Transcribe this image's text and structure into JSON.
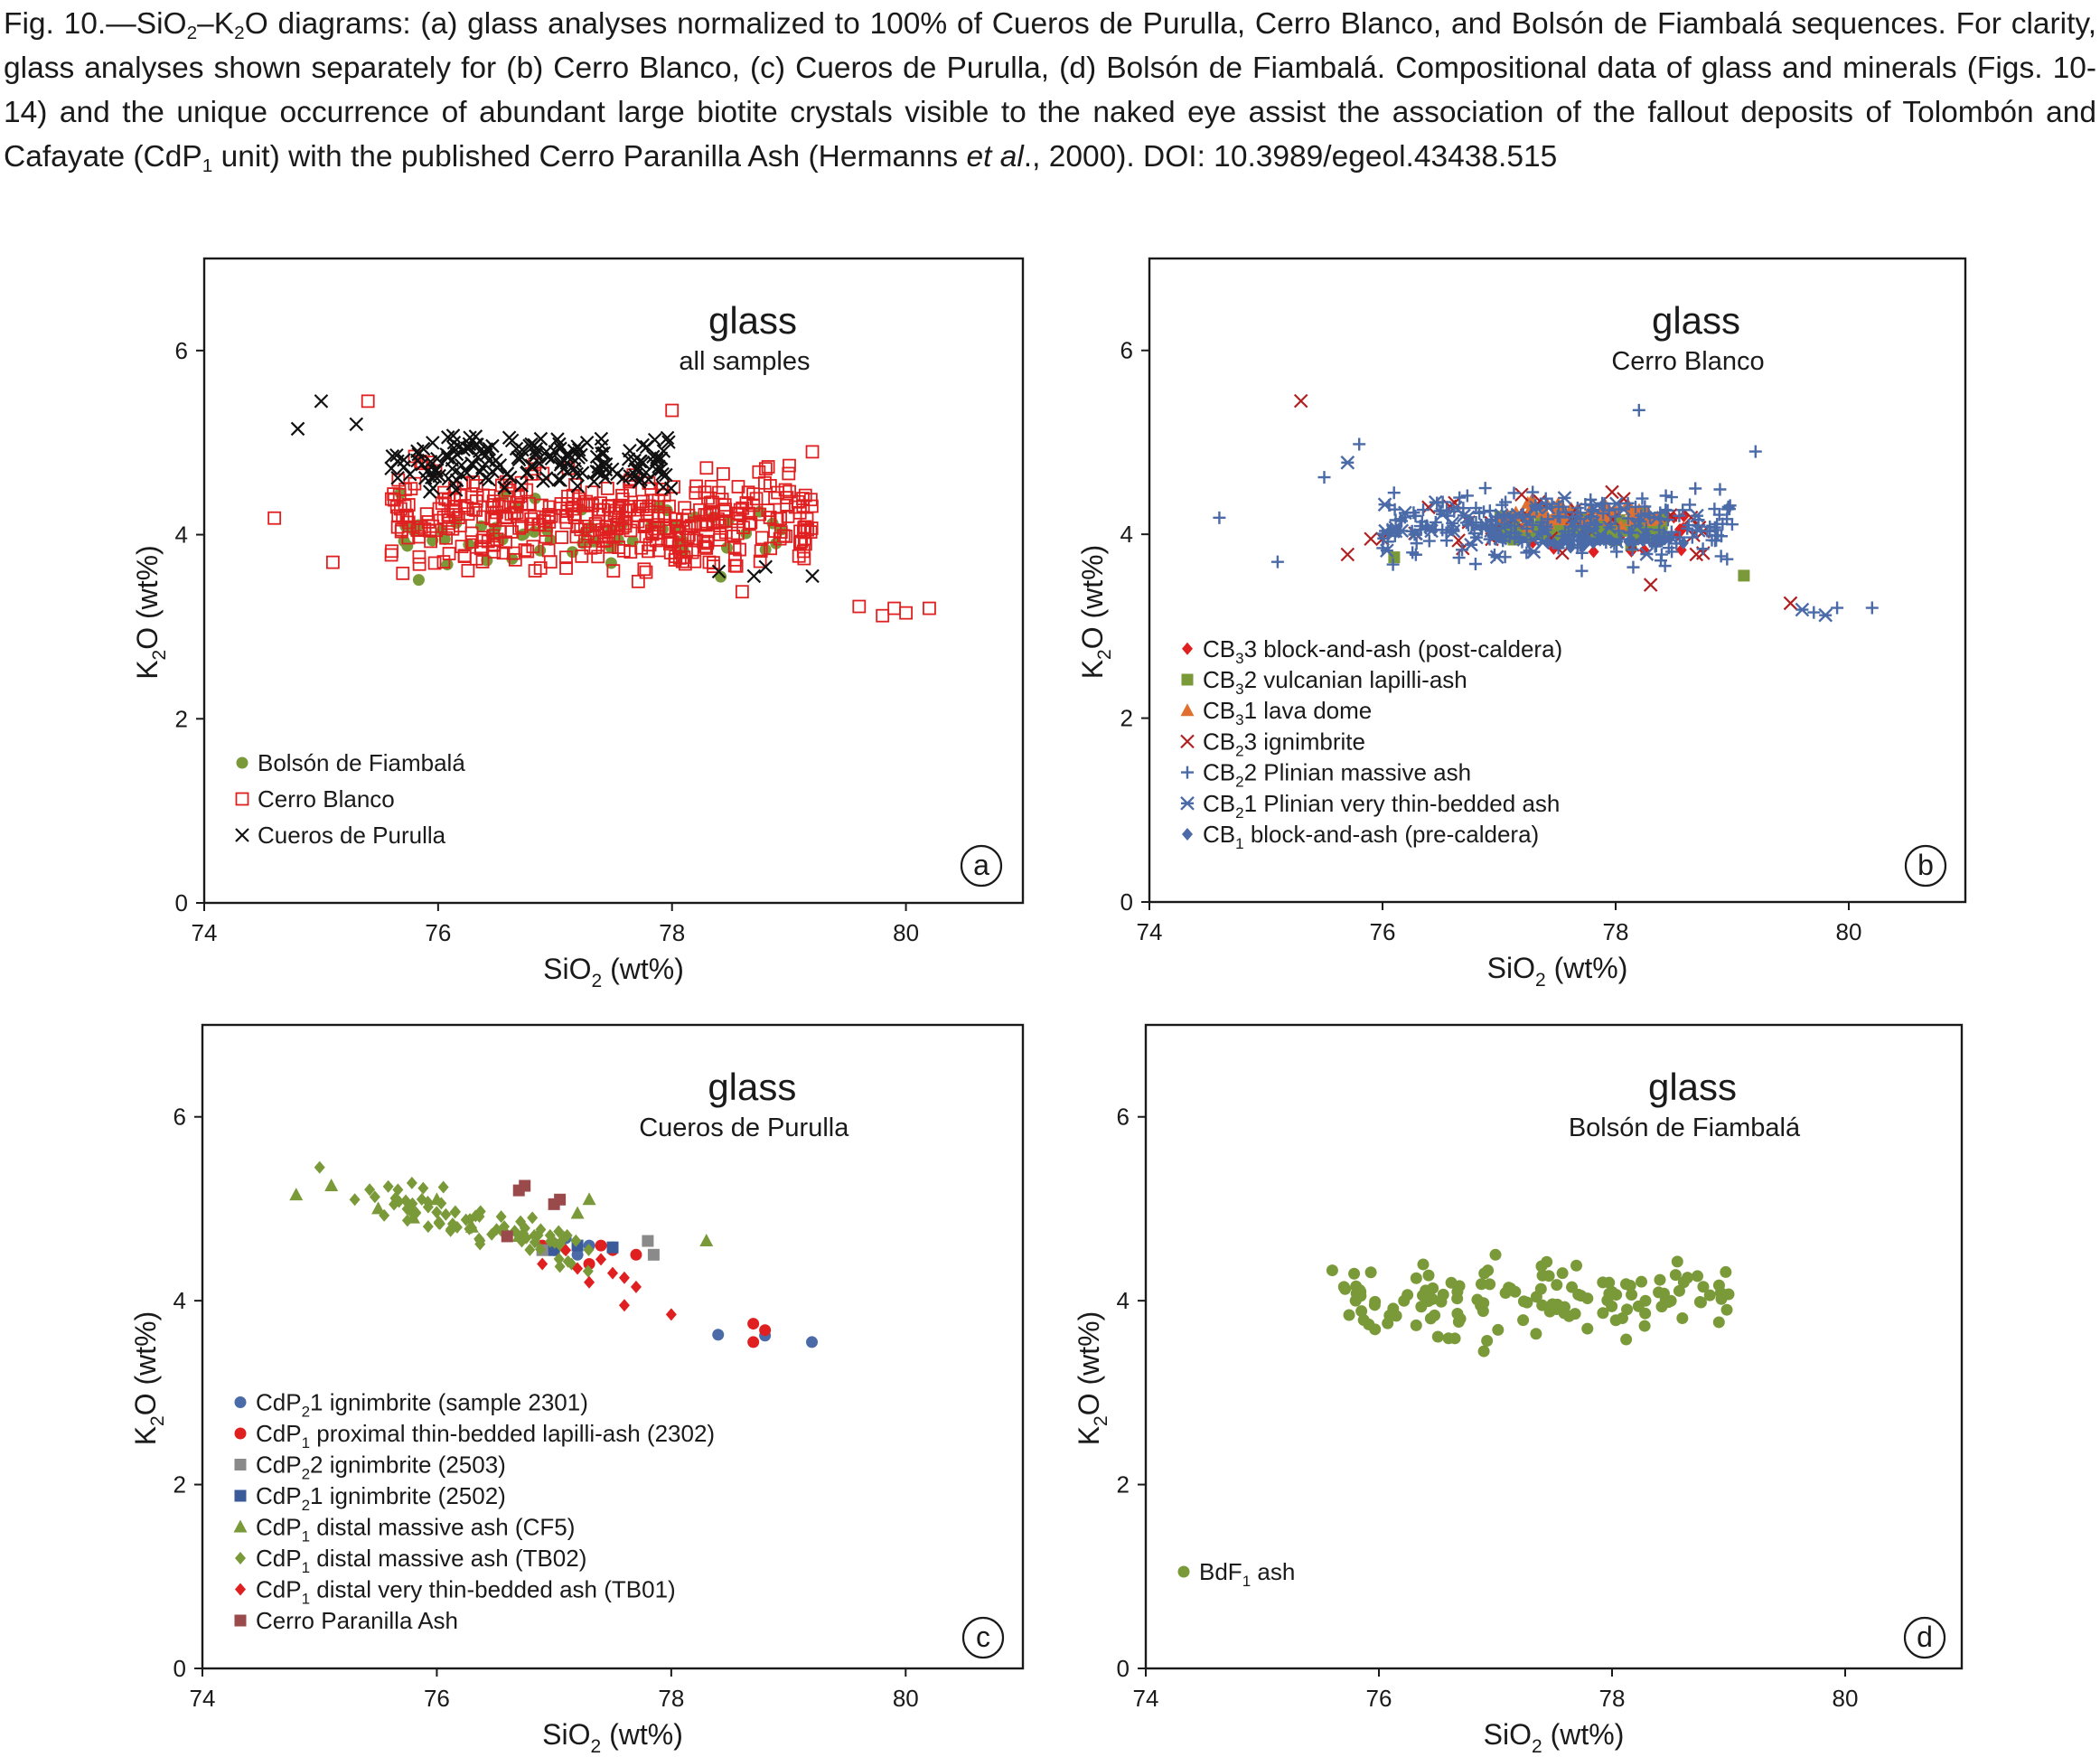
{
  "caption": {
    "fig_label": "Fig. 10.",
    "dash": "—",
    "title_a": "SiO",
    "title_b": "2",
    "title_c": "–K",
    "title_d": "2",
    "title_e": "O diagrams: (a) glass analyses normalized to 100% of Cueros de Purulla, Cerro Blanco, and Bolsón de Fiambalá sequences. For clarity, glass analyses shown separately for (b) Cerro Blanco, (c) Cueros de Purulla, (d) Bolsón de Fiambalá. Compositional data of glass and minerals (Figs. 10-14) and the unique occurrence of abundant large biotite crystals visible to the naked eye assist the association of the fallout deposits of Tolombón and Cafayate (CdP",
    "title_f": "1",
    "title_g": " unit) with the published Cerro Paranilla Ash (Hermanns ",
    "title_h": "et al",
    "title_i": "., 2000). DOI: 10.3989/egeol.43438.515"
  },
  "colors": {
    "green": "#7a9a3a",
    "red": "#e02020",
    "black": "#111111",
    "blue": "#4a6aa8",
    "darkred": "#b02020",
    "orange": "#e07030",
    "gray": "#8a8a8a",
    "navy": "#3a5a9a",
    "brown": "#9a4a4a"
  },
  "chart_data": [
    {
      "panel": "a",
      "type": "scatter",
      "heading": "glass",
      "subheading": "all samples",
      "xlabel_main": "SiO",
      "xlabel_sub": "2",
      "xlabel_tail": " (wt%)",
      "ylabel_main": "K",
      "ylabel_sub": "2",
      "ylabel_tail": "O (wt%)",
      "xlim": [
        74,
        81
      ],
      "ylim": [
        0,
        7
      ],
      "xticks": [
        "74",
        "76",
        "78",
        "80"
      ],
      "yticks": [
        "0",
        "2",
        "4",
        "6"
      ],
      "legend_placement": "bottom-left",
      "series": [
        {
          "name": "Bolsón de Fiambalá",
          "marker": "circle",
          "color": "green",
          "cluster": {
            "x": [
              75.6,
              79.0
            ],
            "y": [
              3.45,
              4.6
            ],
            "n": 60,
            "seed": 11
          }
        },
        {
          "name": "Cerro Blanco",
          "marker": "open-square",
          "color": "red",
          "cluster": {
            "x": [
              75.6,
              79.2
            ],
            "y": [
              3.4,
              4.9
            ],
            "n": 420,
            "seed": 21
          },
          "points": [
            [
              74.6,
              4.18
            ],
            [
              75.1,
              3.7
            ],
            [
              75.4,
              5.45
            ],
            [
              75.6,
              3.78
            ],
            [
              75.8,
              4.85
            ],
            [
              78.0,
              5.35
            ],
            [
              79.2,
              4.9
            ],
            [
              79.6,
              3.22
            ],
            [
              79.8,
              3.12
            ],
            [
              79.9,
              3.2
            ],
            [
              80.0,
              3.15
            ],
            [
              80.2,
              3.2
            ],
            [
              78.6,
              3.38
            ]
          ]
        },
        {
          "name": "Cueros de Purulla",
          "marker": "x",
          "color": "black",
          "cluster": {
            "x": [
              75.6,
              78.0
            ],
            "y": [
              4.4,
              5.2
            ],
            "n": 170,
            "seed": 31
          },
          "points": [
            [
              74.8,
              5.15
            ],
            [
              75.0,
              5.45
            ],
            [
              75.3,
              5.2
            ],
            [
              75.6,
              4.72
            ],
            [
              77.0,
              4.9
            ],
            [
              77.8,
              4.6
            ],
            [
              78.4,
              3.6
            ],
            [
              78.7,
              3.55
            ],
            [
              79.2,
              3.55
            ],
            [
              78.8,
              3.65
            ]
          ]
        }
      ]
    },
    {
      "panel": "b",
      "type": "scatter",
      "heading": "glass",
      "subheading": "Cerro Blanco",
      "xlabel_main": "SiO",
      "xlabel_sub": "2",
      "xlabel_tail": " (wt%)",
      "ylabel_main": "K",
      "ylabel_sub": "2",
      "ylabel_tail": "O (wt%)",
      "xlim": [
        74,
        81
      ],
      "ylim": [
        0,
        7
      ],
      "xticks": [
        "74",
        "76",
        "78",
        "80"
      ],
      "yticks": [
        "0",
        "2",
        "4",
        "6"
      ],
      "legend_placement": "bottom-left",
      "series": [
        {
          "name_a": "CB",
          "name_sub": "3",
          "name_b": "3 block-and-ash (post-caldera)",
          "marker": "diamond",
          "color": "red",
          "cluster": {
            "x": [
              77.0,
              78.6
            ],
            "y": [
              3.7,
              4.4
            ],
            "n": 40,
            "seed": 41
          }
        },
        {
          "name_a": "CB",
          "name_sub": "3",
          "name_b": "2 vulcanian lapilli-ash",
          "marker": "square",
          "color": "green",
          "cluster": {
            "x": [
              77.0,
              78.4
            ],
            "y": [
              3.85,
              4.3
            ],
            "n": 90,
            "seed": 51
          },
          "points": [
            [
              79.1,
              3.55
            ],
            [
              76.1,
              3.75
            ]
          ]
        },
        {
          "name_a": "CB",
          "name_sub": "3",
          "name_b": "1 lava dome",
          "marker": "triangle",
          "color": "orange",
          "cluster": {
            "x": [
              77.0,
              78.4
            ],
            "y": [
              4.0,
              4.4
            ],
            "n": 60,
            "seed": 61
          }
        },
        {
          "name_a": "CB",
          "name_sub": "2",
          "name_b": "3 ignimbrite",
          "marker": "x",
          "color": "darkred",
          "cluster": {
            "x": [
              76.0,
              78.8
            ],
            "y": [
              3.6,
              4.7
            ],
            "n": 30,
            "seed": 71
          },
          "points": [
            [
              75.3,
              5.45
            ],
            [
              75.7,
              3.78
            ],
            [
              79.5,
              3.25
            ],
            [
              78.3,
              3.45
            ],
            [
              75.9,
              3.95
            ],
            [
              76.0,
              3.95
            ]
          ]
        },
        {
          "name_a": "CB",
          "name_sub": "2",
          "name_b": "2 Plinian massive ash",
          "marker": "plus",
          "color": "blue",
          "cluster": {
            "x": [
              76.0,
              79.0
            ],
            "y": [
              3.5,
              4.7
            ],
            "n": 230,
            "seed": 81
          },
          "points": [
            [
              74.6,
              4.18
            ],
            [
              75.1,
              3.7
            ],
            [
              75.5,
              4.62
            ],
            [
              75.8,
              4.98
            ],
            [
              79.2,
              4.9
            ],
            [
              78.2,
              5.35
            ],
            [
              80.2,
              3.2
            ],
            [
              79.9,
              3.2
            ],
            [
              79.7,
              3.15
            ]
          ]
        },
        {
          "name_a": "CB",
          "name_sub": "2",
          "name_b": "1 Plinian very thin-bedded ash",
          "marker": "star",
          "color": "blue",
          "cluster": {
            "x": [
              76.0,
              78.8
            ],
            "y": [
              3.7,
              4.5
            ],
            "n": 60,
            "seed": 91
          },
          "points": [
            [
              75.7,
              4.78
            ],
            [
              79.6,
              3.18
            ],
            [
              79.8,
              3.12
            ]
          ]
        },
        {
          "name_a": "CB",
          "name_sub": "1",
          "name_b": " block-and-ash (pre-caldera)",
          "marker": "diamond",
          "color": "blue",
          "cluster": {
            "x": [
              77.4,
              78.6
            ],
            "y": [
              3.85,
              4.0
            ],
            "n": 30,
            "seed": 95
          }
        }
      ]
    },
    {
      "panel": "c",
      "type": "scatter",
      "heading": "glass",
      "subheading": "Cueros de Purulla",
      "xlabel_main": "SiO",
      "xlabel_sub": "2",
      "xlabel_tail": " (wt%)",
      "ylabel_main": "K",
      "ylabel_sub": "2",
      "ylabel_tail": "O (wt%)",
      "xlim": [
        74,
        81
      ],
      "ylim": [
        0,
        7
      ],
      "xticks": [
        "74",
        "76",
        "78",
        "80"
      ],
      "yticks": [
        "0",
        "2",
        "4",
        "6"
      ],
      "legend_placement": "bottom-left",
      "series": [
        {
          "name_a": "CdP",
          "name_sub": "2",
          "name_b": "1 ignimbrite (sample 2301)",
          "marker": "circle",
          "color": "blue",
          "points": [
            [
              77.1,
              4.68
            ],
            [
              77.3,
              4.6
            ],
            [
              77.5,
              4.58
            ],
            [
              77.2,
              4.5
            ],
            [
              78.4,
              3.63
            ],
            [
              78.8,
              3.62
            ],
            [
              79.2,
              3.55
            ],
            [
              77.0,
              4.62
            ]
          ]
        },
        {
          "name_a": "CdP",
          "name_sub": "1",
          "name_b": " proximal thin-bedded lapilli-ash (2302)",
          "marker": "circle",
          "color": "red",
          "points": [
            [
              77.0,
              4.55
            ],
            [
              77.3,
              4.4
            ],
            [
              77.5,
              4.55
            ],
            [
              77.7,
              4.5
            ],
            [
              78.7,
              3.75
            ],
            [
              78.8,
              3.68
            ],
            [
              78.7,
              3.55
            ],
            [
              77.4,
              4.6
            ],
            [
              76.9,
              4.6
            ]
          ]
        },
        {
          "name_a": "CdP",
          "name_sub": "2",
          "name_b": "2 ignimbrite (2503)",
          "marker": "square",
          "color": "gray",
          "points": [
            [
              77.8,
              4.65
            ],
            [
              77.85,
              4.5
            ],
            [
              77.0,
              4.6
            ],
            [
              76.9,
              4.55
            ]
          ]
        },
        {
          "name_a": "CdP",
          "name_sub": "2",
          "name_b": "1 ignimbrite (2502)",
          "marker": "square",
          "color": "navy",
          "points": [
            [
              77.2,
              4.6
            ],
            [
              77.5,
              4.58
            ],
            [
              77.0,
              4.55
            ]
          ]
        },
        {
          "name_a": "CdP",
          "name_sub": "1",
          "name_b": " distal massive ash (CF5)",
          "marker": "triangle",
          "color": "green",
          "points": [
            [
              74.8,
              5.15
            ],
            [
              75.1,
              5.25
            ],
            [
              75.5,
              5.0
            ],
            [
              75.8,
              4.9
            ],
            [
              76.3,
              4.8
            ],
            [
              77.3,
              5.1
            ],
            [
              77.2,
              4.95
            ],
            [
              78.3,
              4.65
            ],
            [
              76.0,
              5.1
            ],
            [
              76.7,
              4.7
            ]
          ]
        },
        {
          "name_a": "CdP",
          "name_sub": "1",
          "name_b": " distal massive ash (TB02)",
          "marker": "diamond",
          "color": "green",
          "cluster": {
            "x": [
              75.4,
              77.3
            ],
            "y": [
              4.5,
              5.2
            ],
            "n": 80,
            "seed": 101
          },
          "points": [
            [
              75.0,
              5.45
            ],
            [
              75.3,
              5.1
            ]
          ]
        },
        {
          "name_a": "CdP",
          "name_sub": "1",
          "name_b": " distal very thin-bedded ash (TB01)",
          "marker": "diamond",
          "color": "red",
          "points": [
            [
              76.9,
              4.4
            ],
            [
              77.1,
              4.55
            ],
            [
              77.2,
              4.35
            ],
            [
              77.4,
              4.45
            ],
            [
              77.5,
              4.3
            ],
            [
              77.6,
              4.25
            ],
            [
              77.7,
              4.15
            ],
            [
              77.6,
              3.95
            ],
            [
              78.0,
              3.85
            ],
            [
              77.3,
              4.2
            ]
          ]
        },
        {
          "name": "Cerro Paranilla Ash",
          "marker": "square",
          "color": "brown",
          "points": [
            [
              76.7,
              5.2
            ],
            [
              76.75,
              5.25
            ],
            [
              77.0,
              5.05
            ],
            [
              77.05,
              5.1
            ],
            [
              76.6,
              4.7
            ]
          ]
        }
      ]
    },
    {
      "panel": "d",
      "type": "scatter",
      "heading": "glass",
      "subheading": "Bolsón de Fiambalá",
      "xlabel_main": "SiO",
      "xlabel_sub": "2",
      "xlabel_tail": " (wt%)",
      "ylabel_main": "K",
      "ylabel_sub": "2",
      "ylabel_tail": "O (wt%)",
      "xlim": [
        74,
        81
      ],
      "ylim": [
        0,
        7
      ],
      "xticks": [
        "74",
        "76",
        "78",
        "80"
      ],
      "yticks": [
        "0",
        "2",
        "4",
        "6"
      ],
      "legend_placement": "bottom-left",
      "series": [
        {
          "name_a": "BdF",
          "name_sub": "1",
          "name_b": " ash",
          "marker": "circle",
          "color": "green",
          "cluster": {
            "x": [
              75.7,
              79.0
            ],
            "y": [
              3.45,
              4.6
            ],
            "n": 130,
            "seed": 111
          },
          "points": [
            [
              75.6,
              4.33
            ],
            [
              75.7,
              4.15
            ],
            [
              75.8,
              4.0
            ],
            [
              76.9,
              3.45
            ],
            [
              77.0,
              4.5
            ],
            [
              79.0,
              4.07
            ]
          ]
        }
      ]
    }
  ]
}
